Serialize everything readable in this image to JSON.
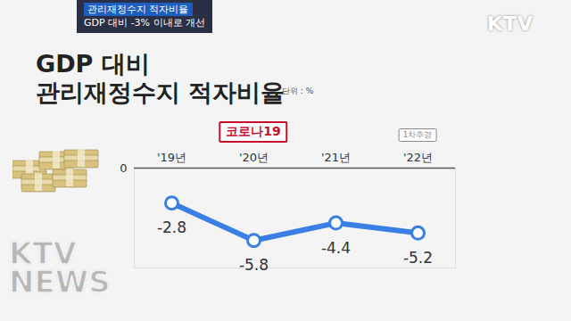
{
  "chart_data": {
    "type": "line",
    "banner": [
      "관리재정수지 적자비율",
      "GDP 대비 -3% 이내로 개선"
    ],
    "logo": "KTV",
    "watermark": "KTV\nNEWS",
    "title": "GDP 대비\n관리재정수지 적자비율",
    "unit_label": "단위 : %",
    "categories": [
      "'19년",
      "'20년",
      "'21년",
      "'22년"
    ],
    "values": [
      -2.8,
      -5.8,
      -4.4,
      -5.2
    ],
    "color": "#3a7fe6",
    "marker": "circle",
    "data_labels": true,
    "ylim": [
      -8,
      0
    ],
    "yticks": [
      0
    ],
    "grid": true,
    "annotations": [
      {
        "category": "'20년",
        "text": "코로나19",
        "color": "#c8102e"
      },
      {
        "category": "'22년",
        "text": "1차추경",
        "color": "#8a8a8a"
      }
    ]
  }
}
